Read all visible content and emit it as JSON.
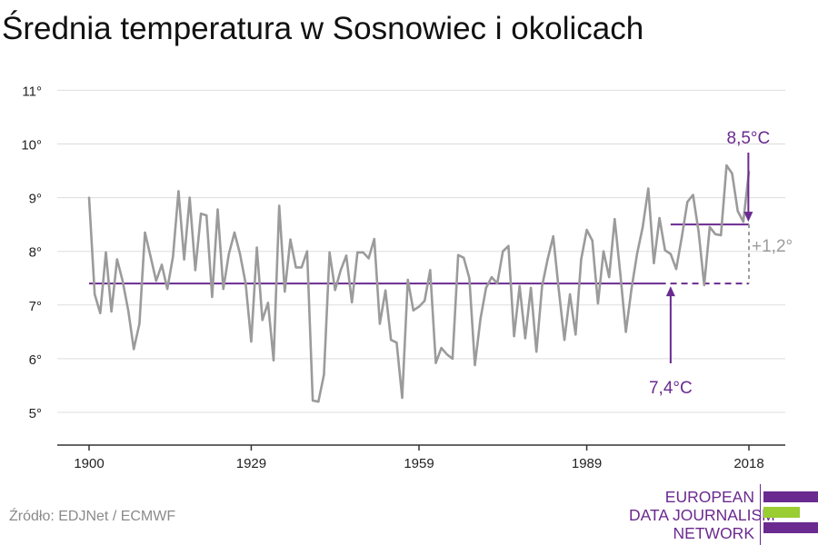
{
  "title": "Średnia temperatura w Sosnowiec i okolicach",
  "source": "Źródło: EDJNet / ECMWF",
  "logo": {
    "lines": [
      "EUROPEAN",
      "DATA JOURNALISM",
      "NETWORK"
    ],
    "colors": {
      "purple": "#6a2a8f",
      "green": "#9acd32"
    }
  },
  "colors": {
    "series": "#9b9b9b",
    "accent": "#6a2a8f",
    "grid": "#dddddd",
    "axis": "#333333",
    "delta": "#9b9b9b"
  },
  "chart_data": {
    "type": "line",
    "title": "Średnia temperatura w Sosnowiec i okolicach",
    "xlabel": "",
    "ylabel": "",
    "xlim": [
      1900,
      2018
    ],
    "ylim": [
      4.5,
      11.2
    ],
    "x_ticks": [
      1900,
      1929,
      1959,
      1989,
      2018
    ],
    "x_tick_labels": [
      "1900",
      "1929",
      "1959",
      "1989",
      "2018"
    ],
    "y_ticks": [
      5,
      6,
      7,
      8,
      9,
      10,
      11
    ],
    "y_tick_labels": [
      "5°",
      "6°",
      "7°",
      "8°",
      "9°",
      "10°",
      "11°"
    ],
    "grid": true,
    "series": [
      {
        "x": [
          1900,
          1901,
          1902,
          1903,
          1904,
          1905,
          1906,
          1907,
          1908,
          1909,
          1910,
          1911,
          1912,
          1913,
          1914,
          1915,
          1916,
          1917,
          1918,
          1919,
          1920,
          1921,
          1922,
          1923,
          1924,
          1925,
          1926,
          1927,
          1928,
          1929,
          1930,
          1931,
          1932,
          1933,
          1934,
          1935,
          1936,
          1937,
          1938,
          1939,
          1940,
          1941,
          1942,
          1943,
          1944,
          1945,
          1946,
          1947,
          1948,
          1949,
          1950,
          1951,
          1952,
          1953,
          1954,
          1955,
          1956,
          1957,
          1958,
          1959,
          1960,
          1961,
          1962,
          1963,
          1964,
          1965,
          1966,
          1967,
          1968,
          1969,
          1970,
          1971,
          1972,
          1973,
          1974,
          1975,
          1976,
          1977,
          1978,
          1979,
          1980,
          1981,
          1982,
          1983,
          1984,
          1985,
          1986,
          1987,
          1988,
          1989,
          1990,
          1991,
          1992,
          1993,
          1994,
          1995,
          1996,
          1997,
          1998,
          1999,
          2000,
          2001,
          2002,
          2003,
          2004,
          2005,
          2006,
          2007,
          2008,
          2009,
          2010,
          2011,
          2012,
          2013,
          2014,
          2015,
          2016,
          2017,
          2018
        ],
        "y": [
          9.0,
          7.2,
          6.85,
          7.98,
          6.88,
          7.85,
          7.45,
          6.9,
          6.18,
          6.65,
          8.35,
          7.9,
          7.45,
          7.75,
          7.3,
          7.9,
          9.12,
          7.85,
          9.0,
          7.65,
          8.7,
          8.67,
          7.15,
          8.78,
          7.3,
          7.95,
          8.35,
          7.95,
          7.4,
          6.32,
          8.07,
          6.72,
          7.04,
          5.97,
          8.85,
          7.25,
          8.22,
          7.7,
          7.7,
          8.0,
          5.22,
          5.2,
          5.7,
          7.98,
          7.28,
          7.65,
          7.92,
          7.05,
          7.98,
          7.98,
          7.87,
          8.23,
          6.65,
          7.27,
          6.35,
          6.3,
          5.27,
          7.47,
          6.9,
          6.97,
          7.08,
          7.65,
          5.92,
          6.2,
          6.08,
          6.0,
          7.93,
          7.88,
          7.5,
          5.88,
          6.75,
          7.32,
          7.52,
          7.4,
          8.0,
          8.1,
          6.42,
          7.35,
          6.38,
          7.32,
          6.13,
          7.35,
          7.85,
          8.28,
          7.28,
          6.35,
          7.2,
          6.45,
          7.85,
          8.4,
          8.2,
          7.03,
          8.0,
          7.52,
          8.6,
          7.58,
          6.5,
          7.3,
          7.95,
          8.45,
          9.17,
          7.78,
          8.62,
          8.02,
          7.95,
          7.67,
          8.27,
          8.92,
          9.05,
          8.37,
          7.37,
          8.45,
          8.32,
          8.3,
          9.6,
          9.45,
          8.75,
          8.55,
          9.48
        ]
      }
    ],
    "reference_line": {
      "value": 7.4,
      "label": "7,4°C",
      "from": 1900,
      "to": 2002
    },
    "recent_line": {
      "value": 8.5,
      "label": "8,5°C",
      "from": 2004,
      "to": 2018
    },
    "difference": {
      "label": "+1,2°"
    }
  }
}
